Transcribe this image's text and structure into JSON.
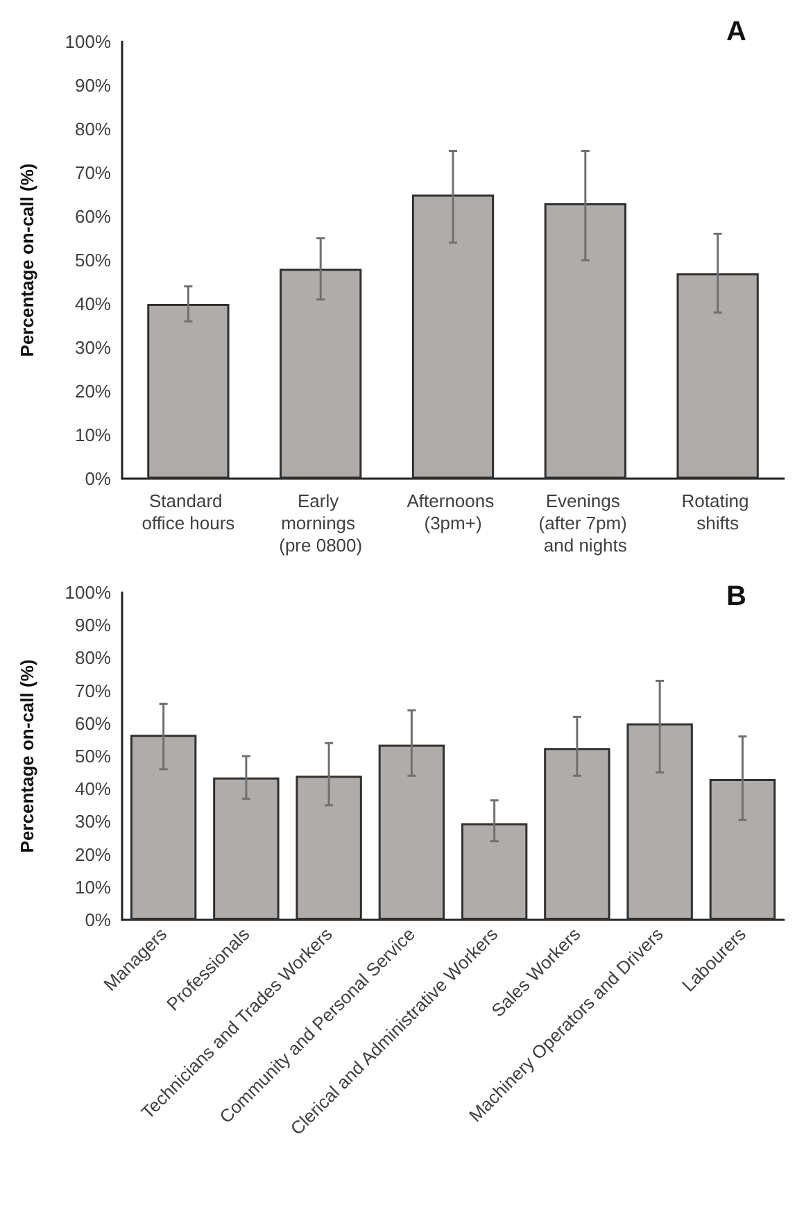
{
  "chart_data": [
    {
      "type": "bar",
      "title": "A",
      "ylabel": "Percentage on-call (%)",
      "categories": [
        "Standard office hours",
        "Early mornings (pre 0800)",
        "Afternoons (3pm+)",
        "Evenings (after 7pm) and nights",
        "Rotating shifts"
      ],
      "values": [
        40,
        48,
        65,
        63,
        47
      ],
      "errors": [
        [
          36,
          44
        ],
        [
          41,
          55
        ],
        [
          54,
          75
        ],
        [
          50,
          75
        ],
        [
          38,
          56
        ]
      ],
      "color": "#b0acaa",
      "ylim": [
        0,
        100
      ],
      "yticks": [
        {
          "value": 0,
          "label": "0%"
        },
        {
          "value": 10,
          "label": "10%"
        },
        {
          "value": 20,
          "label": "20%"
        },
        {
          "value": 30,
          "label": "30%"
        },
        {
          "value": 40,
          "label": "40%"
        },
        {
          "value": 50,
          "label": "50%"
        },
        {
          "value": 60,
          "label": "60%"
        },
        {
          "value": 70,
          "label": "70%"
        },
        {
          "value": 80,
          "label": "80%"
        },
        {
          "value": 90,
          "label": "90%"
        },
        {
          "value": 100,
          "label": "100%"
        }
      ],
      "grid": false
    },
    {
      "type": "bar",
      "title": "B",
      "ylabel": "Percentage on-call (%)",
      "categories": [
        "Managers",
        "Professionals",
        "Technicians and Trades Workers",
        "Community and Personal Service",
        "Clerical and Administrative Workers",
        "Sales Workers",
        "Machinery Operators and Drivers",
        "Labourers"
      ],
      "values": [
        56.5,
        43.5,
        44,
        53.5,
        29.5,
        52.5,
        60,
        43
      ],
      "errors": [
        [
          46,
          66
        ],
        [
          37,
          50
        ],
        [
          35,
          54
        ],
        [
          44,
          64
        ],
        [
          24,
          36.5
        ],
        [
          44,
          62
        ],
        [
          45,
          73
        ],
        [
          30.5,
          56
        ]
      ],
      "color": "#b0acaa",
      "ylim": [
        0,
        100
      ],
      "yticks": [
        {
          "value": 0,
          "label": "0%"
        },
        {
          "value": 10,
          "label": "10%"
        },
        {
          "value": 20,
          "label": "20%"
        },
        {
          "value": 30,
          "label": "30%"
        },
        {
          "value": 40,
          "label": "40%"
        },
        {
          "value": 50,
          "label": "50%"
        },
        {
          "value": 60,
          "label": "60%"
        },
        {
          "value": 70,
          "label": "70%"
        },
        {
          "value": 80,
          "label": "80%"
        },
        {
          "value": 90,
          "label": "90%"
        },
        {
          "value": 100,
          "label": "100%"
        }
      ],
      "grid": false
    }
  ]
}
